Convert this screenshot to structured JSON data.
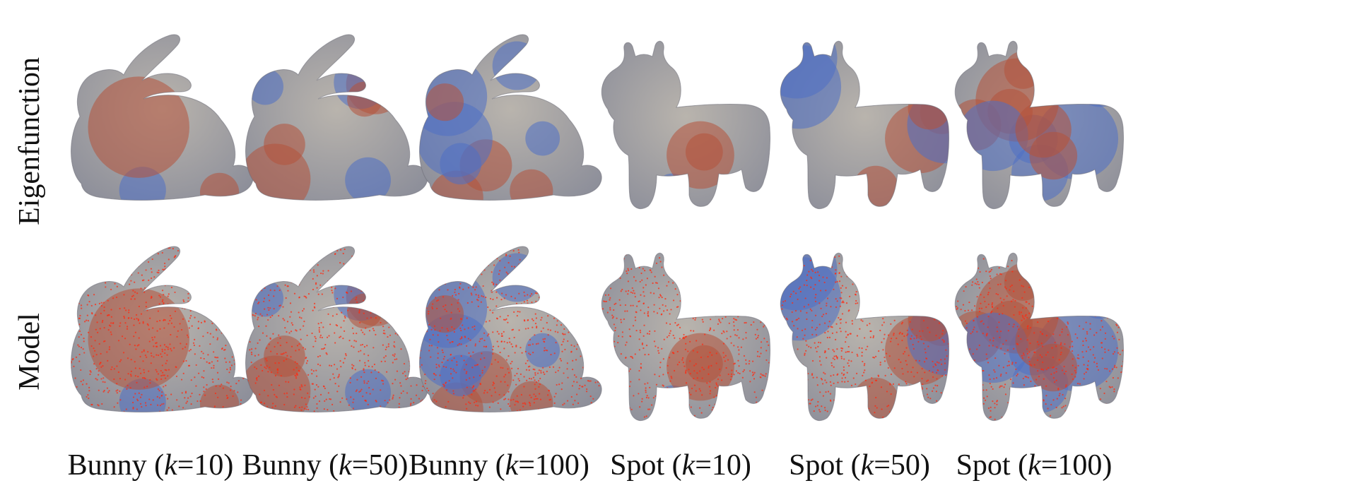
{
  "row_labels": [
    "Eigenfunction",
    "Model"
  ],
  "columns": [
    {
      "name": "Bunny",
      "k": "10",
      "shape": "bunny"
    },
    {
      "name": "Bunny",
      "k": "50",
      "shape": "bunny"
    },
    {
      "name": "Bunny",
      "k": "100",
      "shape": "bunny"
    },
    {
      "name": "Spot",
      "k": "10",
      "shape": "spot"
    },
    {
      "name": "Spot",
      "k": "50",
      "shape": "spot"
    },
    {
      "name": "Spot",
      "k": "100",
      "shape": "spot"
    }
  ],
  "k_symbol": "k",
  "colors": {
    "warm": "#b5523a",
    "cool": "#4f6fc4",
    "neutral": "#b9b4ad",
    "samples": "#ff2a10"
  }
}
